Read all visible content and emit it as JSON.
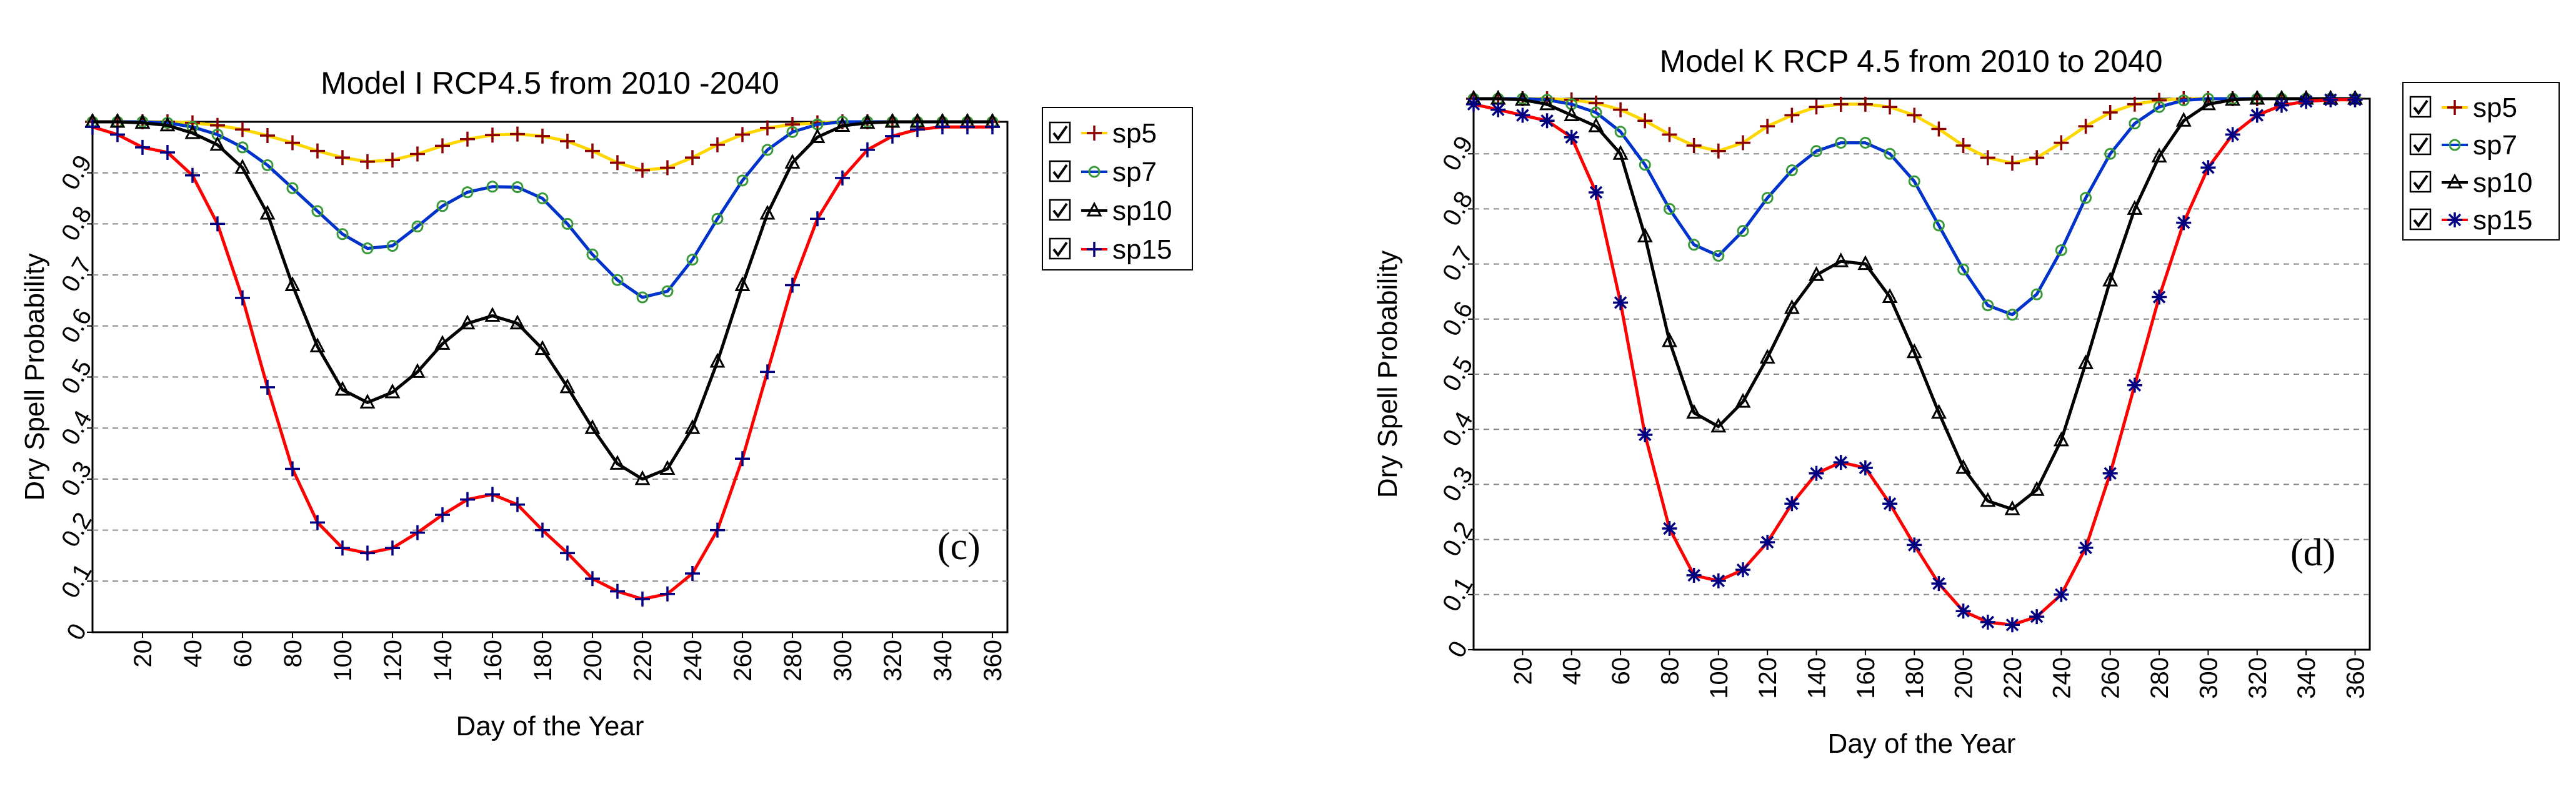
{
  "chart_data": [
    {
      "type": "line",
      "panel_label": "(c)",
      "title": "Model I RCP4.5 from 2010 -2040",
      "xlabel": "Day of the Year",
      "ylabel": "Dry Spell Probability",
      "xlim": [
        0,
        366
      ],
      "ylim": [
        0,
        1
      ],
      "x_ticks": [
        "20",
        "40",
        "60",
        "80",
        "100",
        "120",
        "140",
        "160",
        "180",
        "200",
        "220",
        "240",
        "260",
        "280",
        "300",
        "320",
        "340",
        "360"
      ],
      "y_ticks": [
        "0",
        "0.1",
        "0.2",
        "0.3",
        "0.4",
        "0.5",
        "0.6",
        "0.7",
        "0.8",
        "0.9"
      ],
      "grid": "horizontal dashed",
      "legend_position": "right",
      "x": [
        0,
        10,
        20,
        30,
        40,
        50,
        60,
        70,
        80,
        90,
        100,
        110,
        120,
        130,
        140,
        150,
        160,
        170,
        180,
        190,
        200,
        210,
        220,
        230,
        240,
        250,
        260,
        270,
        280,
        290,
        300,
        310,
        320,
        330,
        340,
        350,
        360
      ],
      "series": [
        {
          "name": "sp5",
          "color": "#ffd700",
          "marker": "plus",
          "marker_color": "#8b0000",
          "values": [
            1.0,
            1.0,
            1.0,
            1.0,
            0.998,
            0.993,
            0.985,
            0.973,
            0.959,
            0.943,
            0.93,
            0.922,
            0.925,
            0.937,
            0.953,
            0.966,
            0.974,
            0.976,
            0.972,
            0.962,
            0.943,
            0.92,
            0.905,
            0.91,
            0.93,
            0.955,
            0.975,
            0.988,
            0.995,
            0.998,
            1.0,
            1.0,
            1.0,
            1.0,
            1.0,
            1.0,
            1.0
          ]
        },
        {
          "name": "sp7",
          "color": "#0033cc",
          "marker": "circle",
          "marker_color": "#3a9a3a",
          "values": [
            1.0,
            1.0,
            1.0,
            0.998,
            0.99,
            0.975,
            0.95,
            0.915,
            0.87,
            0.825,
            0.78,
            0.752,
            0.757,
            0.795,
            0.835,
            0.862,
            0.873,
            0.872,
            0.85,
            0.8,
            0.74,
            0.69,
            0.656,
            0.668,
            0.73,
            0.81,
            0.885,
            0.945,
            0.98,
            0.995,
            1.0,
            1.0,
            1.0,
            1.0,
            1.0,
            1.0,
            1.0
          ]
        },
        {
          "name": "sp10",
          "color": "#000000",
          "marker": "triangle",
          "marker_color": "#000000",
          "values": [
            1.0,
            1.0,
            0.998,
            0.993,
            0.978,
            0.955,
            0.91,
            0.82,
            0.68,
            0.56,
            0.475,
            0.45,
            0.47,
            0.51,
            0.565,
            0.605,
            0.62,
            0.605,
            0.555,
            0.48,
            0.4,
            0.33,
            0.3,
            0.32,
            0.4,
            0.53,
            0.68,
            0.82,
            0.92,
            0.97,
            0.992,
            0.998,
            1.0,
            1.0,
            1.0,
            1.0,
            1.0
          ]
        },
        {
          "name": "sp15",
          "color": "#ff0000",
          "marker": "plus",
          "marker_color": "#000080",
          "values": [
            0.99,
            0.975,
            0.95,
            0.94,
            0.895,
            0.8,
            0.655,
            0.48,
            0.32,
            0.215,
            0.165,
            0.155,
            0.165,
            0.195,
            0.23,
            0.26,
            0.27,
            0.25,
            0.2,
            0.155,
            0.105,
            0.08,
            0.065,
            0.075,
            0.115,
            0.2,
            0.34,
            0.51,
            0.68,
            0.81,
            0.89,
            0.945,
            0.972,
            0.985,
            0.99,
            0.99,
            0.99
          ]
        }
      ]
    },
    {
      "type": "line",
      "panel_label": "(d)",
      "title": "Model K RCP 4.5 from 2010 to 2040",
      "xlabel": "Day of the Year",
      "ylabel": "Dry Spell Probability",
      "xlim": [
        0,
        366
      ],
      "ylim": [
        0,
        1
      ],
      "x_ticks": [
        "20",
        "40",
        "60",
        "80",
        "100",
        "120",
        "140",
        "160",
        "180",
        "200",
        "220",
        "240",
        "260",
        "280",
        "300",
        "320",
        "340",
        "360"
      ],
      "y_ticks": [
        "0",
        "0.1",
        "0.2",
        "0.3",
        "0.4",
        "0.5",
        "0.6",
        "0.7",
        "0.8",
        "0.9"
      ],
      "grid": "horizontal dashed",
      "legend_position": "right",
      "x": [
        0,
        10,
        20,
        30,
        40,
        50,
        60,
        70,
        80,
        90,
        100,
        110,
        120,
        130,
        140,
        150,
        160,
        170,
        180,
        190,
        200,
        210,
        220,
        230,
        240,
        250,
        260,
        270,
        280,
        290,
        300,
        310,
        320,
        330,
        340,
        350,
        360
      ],
      "series": [
        {
          "name": "sp5",
          "color": "#ffd700",
          "marker": "plus",
          "marker_color": "#8b0000",
          "values": [
            1.0,
            1.0,
            1.0,
            1.0,
            0.998,
            0.992,
            0.98,
            0.96,
            0.935,
            0.915,
            0.905,
            0.92,
            0.95,
            0.97,
            0.985,
            0.99,
            0.99,
            0.985,
            0.97,
            0.945,
            0.915,
            0.893,
            0.883,
            0.893,
            0.92,
            0.95,
            0.975,
            0.99,
            0.997,
            1.0,
            1.0,
            1.0,
            1.0,
            1.0,
            1.0,
            1.0,
            1.0
          ]
        },
        {
          "name": "sp7",
          "color": "#0033cc",
          "marker": "circle",
          "marker_color": "#3a9a3a",
          "values": [
            1.0,
            1.0,
            1.0,
            0.998,
            0.99,
            0.975,
            0.94,
            0.88,
            0.8,
            0.735,
            0.715,
            0.76,
            0.82,
            0.87,
            0.905,
            0.92,
            0.92,
            0.9,
            0.85,
            0.77,
            0.69,
            0.625,
            0.608,
            0.645,
            0.725,
            0.82,
            0.9,
            0.955,
            0.985,
            0.997,
            1.0,
            1.0,
            1.0,
            1.0,
            1.0,
            1.0,
            1.0
          ]
        },
        {
          "name": "sp10",
          "color": "#000000",
          "marker": "triangle",
          "marker_color": "#000000",
          "values": [
            1.0,
            1.0,
            0.998,
            0.99,
            0.97,
            0.95,
            0.9,
            0.75,
            0.56,
            0.43,
            0.405,
            0.45,
            0.53,
            0.62,
            0.68,
            0.705,
            0.7,
            0.64,
            0.54,
            0.43,
            0.33,
            0.27,
            0.255,
            0.29,
            0.38,
            0.52,
            0.67,
            0.8,
            0.895,
            0.96,
            0.99,
            0.998,
            1.0,
            1.0,
            1.0,
            1.0,
            1.0
          ]
        },
        {
          "name": "sp15",
          "color": "#ff0000",
          "marker": "asterisk",
          "marker_color": "#000080",
          "values": [
            0.99,
            0.98,
            0.97,
            0.96,
            0.93,
            0.83,
            0.63,
            0.39,
            0.22,
            0.135,
            0.125,
            0.145,
            0.195,
            0.265,
            0.32,
            0.34,
            0.33,
            0.265,
            0.19,
            0.12,
            0.07,
            0.05,
            0.045,
            0.06,
            0.1,
            0.185,
            0.32,
            0.48,
            0.64,
            0.775,
            0.875,
            0.935,
            0.97,
            0.988,
            0.995,
            0.998,
            0.998
          ]
        }
      ]
    }
  ]
}
